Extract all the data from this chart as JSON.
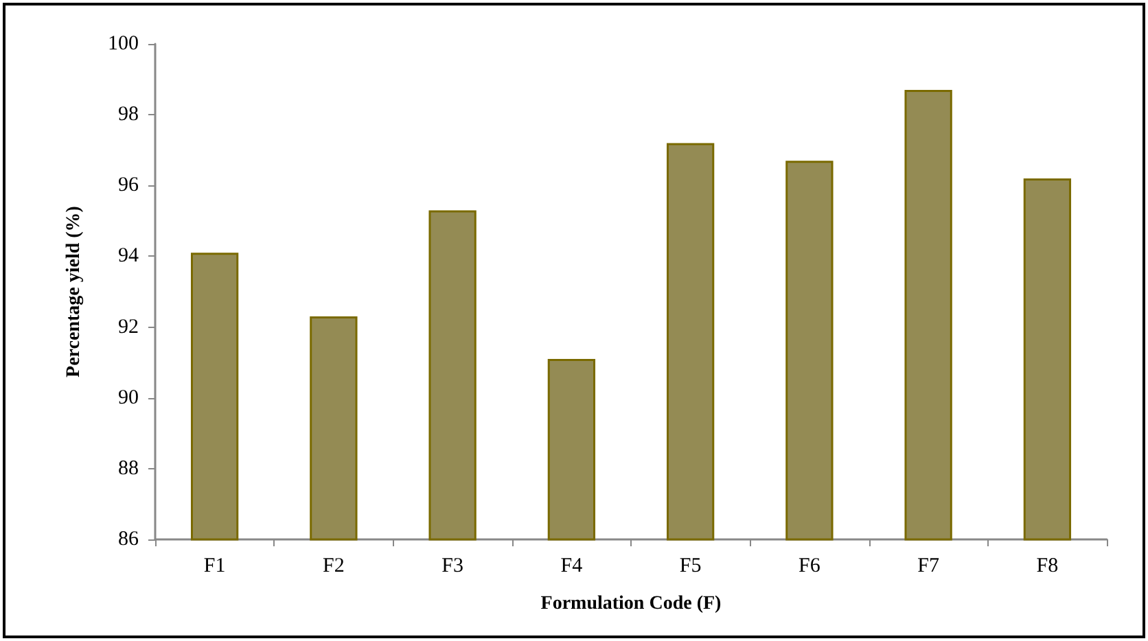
{
  "chart_data": {
    "type": "bar",
    "xlabel": "Formulation Code (F)",
    "ylabel": "Percentage yield (%)",
    "categories": [
      "F1",
      "F2",
      "F3",
      "F4",
      "F5",
      "F6",
      "F7",
      "F8"
    ],
    "values": [
      94.1,
      92.3,
      95.3,
      91.1,
      97.2,
      96.7,
      98.7,
      96.2
    ],
    "color": "#948b54",
    "ylim": [
      86,
      100
    ],
    "yticks": [
      86,
      88,
      90,
      92,
      94,
      96,
      98,
      100
    ],
    "grid": false
  }
}
